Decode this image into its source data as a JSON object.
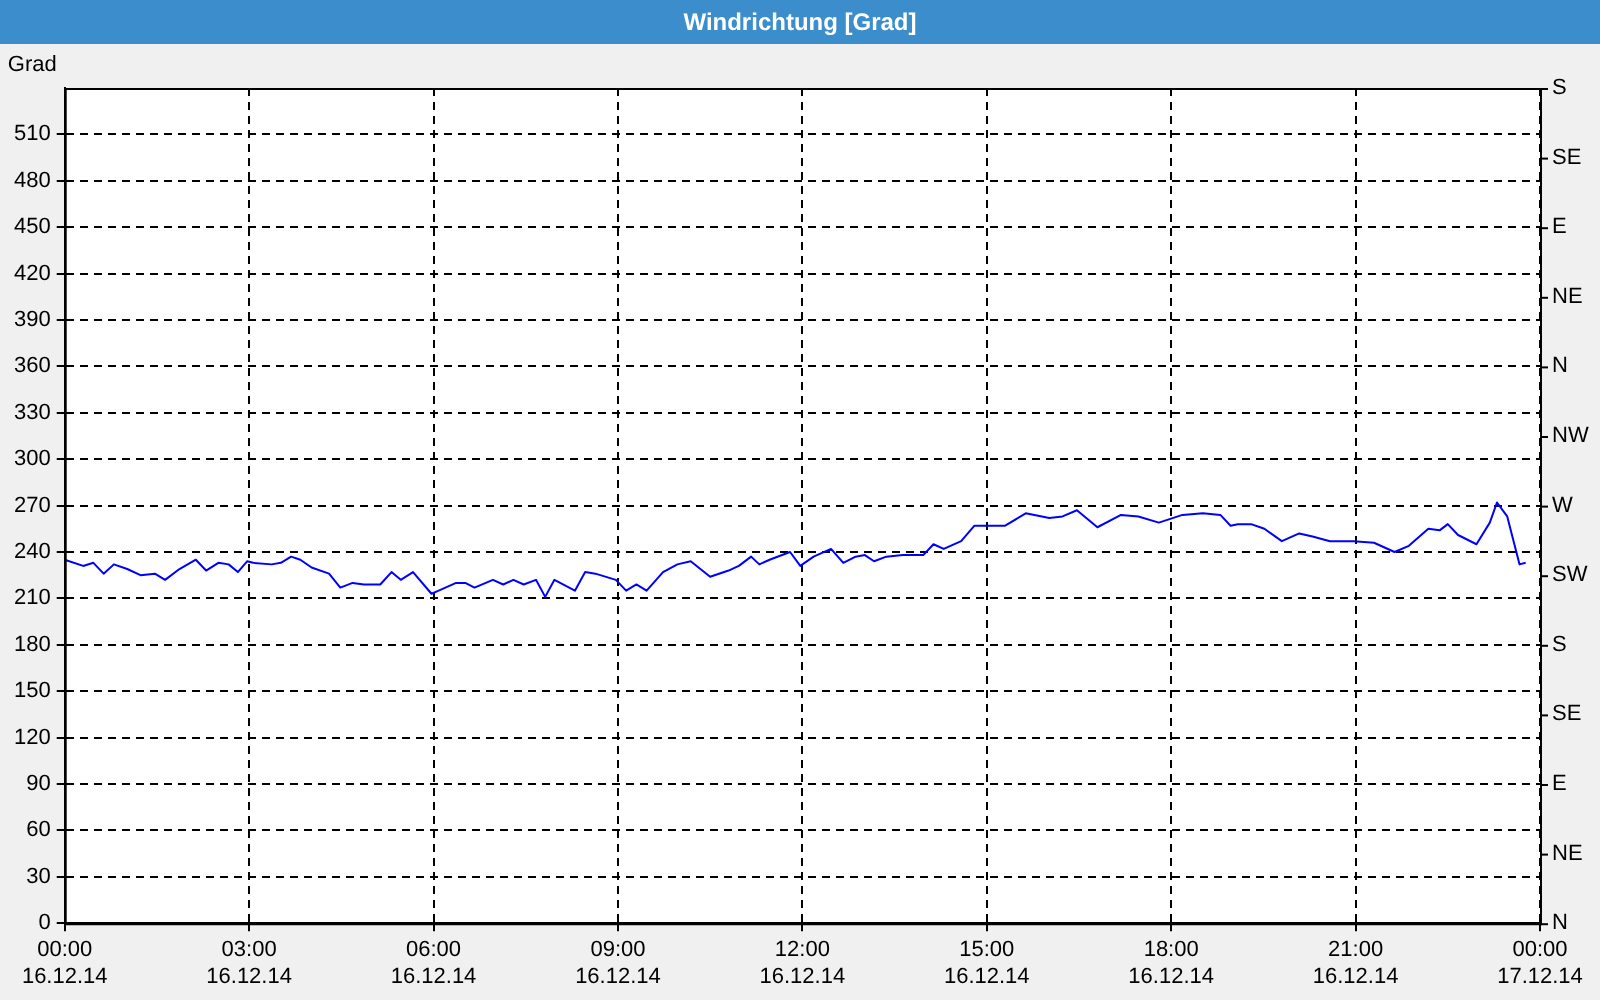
{
  "chart_data": {
    "type": "line",
    "title": "Windrichtung [Grad]",
    "ylabel": "Grad",
    "grid": true,
    "legend": false,
    "marker": "none",
    "line_style": "solid",
    "xlim": [
      "--12-16T00:00",
      "--12-17T00:00"
    ],
    "xticks": [
      {
        "value": "--12-16T00:00",
        "label": "00:00\n16.12.14"
      },
      {
        "value": "--12-16T03:00",
        "label": "03:00\n16.12.14"
      },
      {
        "value": "--12-16T06:00",
        "label": "06:00\n16.12.14"
      },
      {
        "value": "--12-16T09:00",
        "label": "09:00\n16.12.14"
      },
      {
        "value": "--12-16T12:00",
        "label": "12:00\n16.12.14"
      },
      {
        "value": "--12-16T15:00",
        "label": "15:00\n16.12.14"
      },
      {
        "value": "--12-16T18:00",
        "label": "18:00\n16.12.14"
      },
      {
        "value": "--12-16T21:00",
        "label": "21:00\n16.12.14"
      },
      {
        "value": "--12-17T00:00",
        "label": "00:00\n17.12.14"
      }
    ],
    "ylim": [
      0,
      540
    ],
    "yticks": [
      0,
      30,
      60,
      90,
      120,
      150,
      180,
      210,
      240,
      270,
      300,
      330,
      360,
      390,
      420,
      450,
      480,
      510
    ],
    "annotations": [
      "N",
      "NE",
      "E",
      "SE",
      "S",
      "SW",
      "W",
      "NW",
      "N",
      "NE",
      "E",
      "SE",
      "S"
    ],
    "series": [
      {
        "color": "#0000ff",
        "x": [
          "--12-16T00:00",
          "--12-16T00:18",
          "--12-16T00:28",
          "--12-16T00:38",
          "--12-16T00:48",
          "--12-16T01:01",
          "--12-16T01:14",
          "--12-16T01:28",
          "--12-16T01:38",
          "--12-16T01:52",
          "--12-16T02:08",
          "--12-16T02:18",
          "--12-16T02:30",
          "--12-16T02:40",
          "--12-16T02:49",
          "--12-16T02:58",
          "--12-16T03:04",
          "--12-16T03:22",
          "--12-16T03:31",
          "--12-16T03:41",
          "--12-16T03:50",
          "--12-16T04:01",
          "--12-16T04:18",
          "--12-16T04:29",
          "--12-16T04:41",
          "--12-16T04:52",
          "--12-16T05:08",
          "--12-16T05:19",
          "--12-16T05:28",
          "--12-16T05:40",
          "--12-16T05:58",
          "--12-16T06:05",
          "--12-16T06:22",
          "--12-16T06:31",
          "--12-16T06:40",
          "--12-16T06:58",
          "--12-16T07:08",
          "--12-16T07:18",
          "--12-16T07:28",
          "--12-16T07:40",
          "--12-16T07:49",
          "--12-16T07:58",
          "--12-16T08:18",
          "--12-16T08:28",
          "--12-16T08:38",
          "--12-16T08:58",
          "--12-16T09:08",
          "--12-16T09:18",
          "--12-16T09:28",
          "--12-16T09:44",
          "--12-16T09:58",
          "--12-16T10:11",
          "--12-16T10:30",
          "--12-16T10:48",
          "--12-16T10:58",
          "--12-16T11:10",
          "--12-16T11:18",
          "--12-16T11:28",
          "--12-16T11:48",
          "--12-16T11:58",
          "--12-16T12:11",
          "--12-16T12:28",
          "--12-16T12:40",
          "--12-16T12:52",
          "--12-16T13:01",
          "--12-16T13:10",
          "--12-16T13:22",
          "--12-16T13:38",
          "--12-16T13:58",
          "--12-16T14:08",
          "--12-16T14:18",
          "--12-16T14:35",
          "--12-16T14:48",
          "--12-16T15:18",
          "--12-16T15:38",
          "--12-16T16:01",
          "--12-16T16:14",
          "--12-16T16:28",
          "--12-16T16:48",
          "--12-16T17:11",
          "--12-16T17:28",
          "--12-16T17:48",
          "--12-16T18:11",
          "--12-16T18:31",
          "--12-16T18:48",
          "--12-16T18:58",
          "--12-16T19:05",
          "--12-16T19:18",
          "--12-16T19:31",
          "--12-16T19:48",
          "--12-16T20:05",
          "--12-16T20:18",
          "--12-16T20:35",
          "--12-16T20:58",
          "--12-16T21:18",
          "--12-16T21:38",
          "--12-16T21:52",
          "--12-16T22:11",
          "--12-16T22:22",
          "--12-16T22:30",
          "--12-16T22:40",
          "--12-16T22:58",
          "--12-16T23:11",
          "--12-16T23:18",
          "--12-16T23:28",
          "--12-16T23:40",
          "--12-16T23:46"
        ],
        "values": [
          235,
          231,
          233,
          226,
          232,
          229,
          225,
          226,
          222,
          229,
          235,
          228,
          233,
          232,
          227,
          234,
          233,
          232,
          233,
          237,
          235,
          230,
          226,
          217,
          220,
          219,
          219,
          227,
          222,
          227,
          213,
          215,
          220,
          220,
          217,
          222,
          219,
          222,
          219,
          222,
          211,
          222,
          215,
          227,
          226,
          222,
          215,
          219,
          215,
          227,
          232,
          234,
          224,
          228,
          231,
          237,
          232,
          235,
          240,
          231,
          237,
          242,
          233,
          237,
          238,
          234,
          237,
          238,
          238,
          245,
          242,
          247,
          257,
          257,
          265,
          262,
          263,
          267,
          256,
          264,
          263,
          259,
          264,
          265,
          264,
          257,
          258,
          258,
          255,
          247,
          252,
          250,
          247,
          247,
          246,
          240,
          244,
          255,
          254,
          258,
          251,
          245,
          259,
          272,
          263,
          232,
          233
        ]
      }
    ]
  }
}
